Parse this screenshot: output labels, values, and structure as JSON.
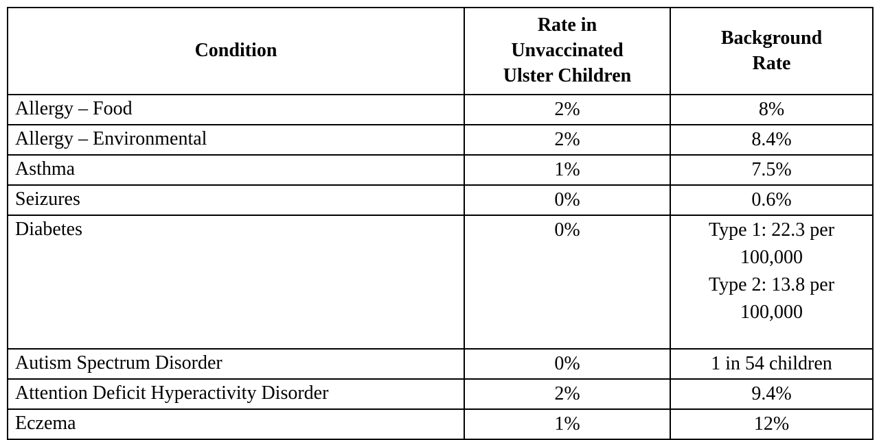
{
  "table": {
    "columns": [
      {
        "label": "Condition"
      },
      {
        "label": "Rate in\nUnvaccinated\nUlster Children"
      },
      {
        "label": "Background\nRate"
      }
    ],
    "rows": [
      {
        "condition": "Allergy – Food",
        "rate": "2%",
        "background": "8%"
      },
      {
        "condition": "Allergy – Environmental",
        "rate": "2%",
        "background": "8.4%"
      },
      {
        "condition": "Asthma",
        "rate": "1%",
        "background": "7.5%"
      },
      {
        "condition": "Seizures",
        "rate": "0%",
        "background": "0.6%"
      },
      {
        "condition": "Diabetes",
        "rate": "0%",
        "background": "Type 1: 22.3 per\n100,000\nType 2: 13.8 per\n100,000"
      },
      {
        "condition": "Autism Spectrum Disorder",
        "rate": "0%",
        "background": "1 in 54 children"
      },
      {
        "condition": "Attention Deficit Hyperactivity Disorder",
        "rate": "2%",
        "background": "9.4%"
      },
      {
        "condition": "Eczema",
        "rate": "1%",
        "background": "12%"
      }
    ],
    "colors": {
      "text": "#000000",
      "border": "#000000",
      "background": "#ffffff"
    }
  }
}
